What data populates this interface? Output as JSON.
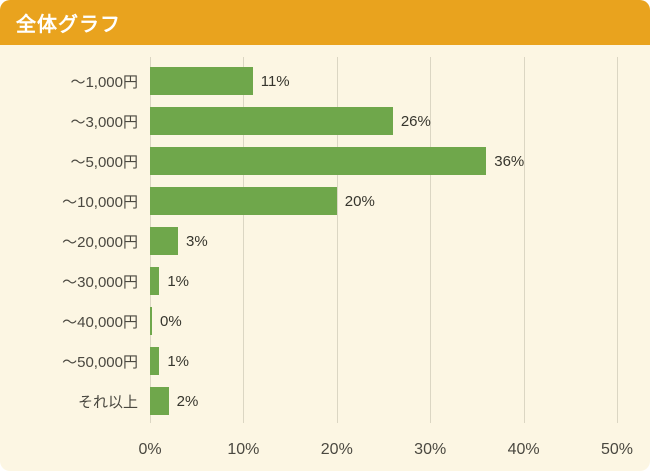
{
  "header": {
    "title": "全体グラフ",
    "background_color": "#E9A31E",
    "text_color": "#FFFFFF"
  },
  "chart_data": {
    "type": "bar",
    "orientation": "horizontal",
    "title": "全体グラフ",
    "categories": [
      "～1,000円",
      "～3,000円",
      "～5,000円",
      "～10,000円",
      "～20,000円",
      "～30,000円",
      "～40,000円",
      "～50,000円",
      "それ以上"
    ],
    "values": [
      11,
      26,
      36,
      20,
      3,
      1,
      0,
      1,
      2
    ],
    "value_labels": [
      "11%",
      "26%",
      "36%",
      "20%",
      "3%",
      "1%",
      "0%",
      "1%",
      "2%"
    ],
    "x_ticks": [
      "0%",
      "10%",
      "20%",
      "30%",
      "40%",
      "50%"
    ],
    "xlim": [
      0,
      50
    ],
    "xlabel": "",
    "ylabel": "",
    "grid": true,
    "legend": false,
    "bar_color": "#6FA74B",
    "background_color": "#FCF6E3",
    "gridline_color": "#DBD6C3"
  }
}
